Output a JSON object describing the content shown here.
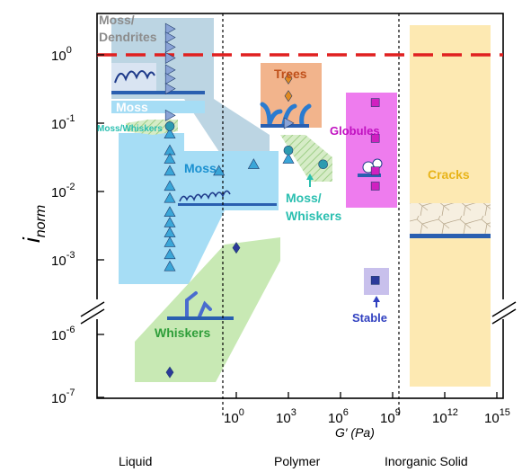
{
  "chart_data": {
    "type": "scatter",
    "y_axis": {
      "label_main": "i",
      "label_sub": "norm",
      "scale": "log",
      "ticks": [
        {
          "exp": "0",
          "base": "10"
        },
        {
          "exp": "-1",
          "base": "10"
        },
        {
          "exp": "-2",
          "base": "10"
        },
        {
          "exp": "-3",
          "base": "10"
        },
        {
          "exp": "-6",
          "base": "10"
        },
        {
          "exp": "-7",
          "base": "10"
        }
      ]
    },
    "x_axis": {
      "label": "G′ (Pa)",
      "scale": "log",
      "ticks": [
        {
          "exp": "0",
          "base": "10"
        },
        {
          "exp": "3",
          "base": "10"
        },
        {
          "exp": "6",
          "base": "10"
        },
        {
          "exp": "9",
          "base": "10"
        },
        {
          "exp": "12",
          "base": "10"
        },
        {
          "exp": "15",
          "base": "10"
        }
      ]
    },
    "regions": [
      "Liquid",
      "Polymer",
      "Inorganic Solid"
    ],
    "reference_line": {
      "y": 1,
      "style": "dashed",
      "color": "#e02020"
    },
    "morphologies": {
      "moss_dendrites": "Moss/ Dendrites",
      "moss": "Moss",
      "moss_whiskers_small": "Moss/Whiskers",
      "moss_mid": "Moss",
      "whiskers": "Whiskers",
      "trees": "Trees",
      "moss_whiskers_line1": "Moss/",
      "moss_whiskers_line2": "Whiskers",
      "globules": "Globules",
      "stable": "Stable",
      "cracks": "Cracks"
    },
    "series": [
      {
        "marker": "triangle-right",
        "color": "#8aa3d6",
        "region": "Liquid",
        "y": [
          2.4,
          1.8,
          1.3,
          0.9,
          0.6,
          0.45,
          0.32,
          0.13
        ]
      },
      {
        "marker": "triangle-up",
        "color": "#3aa6d8",
        "region": "Liquid",
        "y": [
          0.07,
          0.04,
          0.03,
          0.02,
          0.012,
          0.008,
          0.005,
          0.0035,
          0.0025,
          0.0018,
          0.0012,
          0.0008
        ]
      },
      {
        "marker": "circle",
        "color": "#2d9bb0",
        "region": "Liquid",
        "y": [
          0.09
        ]
      },
      {
        "marker": "diamond",
        "color": "#2b3a9a",
        "region": "Liquid",
        "y": [
          2.5e-07
        ]
      },
      {
        "marker": "diamond",
        "color": "#2b3a9a",
        "G": [
          1
        ],
        "y": [
          0.0015
        ]
      },
      {
        "marker": "triangle-up",
        "color": "#3aa6d8",
        "G": [
          0.1,
          10,
          1000
        ],
        "y": [
          0.02,
          0.025,
          0.03
        ]
      },
      {
        "marker": "triangle-right",
        "color": "#8aa3d6",
        "G": [
          1000
        ],
        "y": [
          0.1
        ]
      },
      {
        "marker": "circle",
        "color": "#2d9bb0",
        "G": [
          1000,
          100000
        ],
        "y": [
          0.04,
          0.025
        ]
      },
      {
        "marker": "diamond",
        "color": "#e08a20",
        "G": [
          1000
        ],
        "y": [
          0.45,
          0.25
        ]
      },
      {
        "marker": "square",
        "color": "#d020c0",
        "G": [
          100000000.0
        ],
        "y": [
          0.2,
          0.06,
          0.02,
          0.012
        ]
      },
      {
        "marker": "square",
        "color": "#2b3a9a",
        "G": [
          100000000.0
        ],
        "y": [
          0.0005
        ]
      }
    ]
  }
}
